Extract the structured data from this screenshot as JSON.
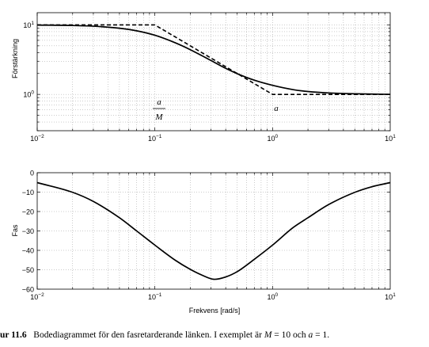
{
  "chart_data": [
    {
      "type": "line",
      "xscale": "log",
      "yscale": "log",
      "xlim": [
        0.01,
        10
      ],
      "ylim": [
        0.3,
        15
      ],
      "grid": true,
      "ylabel": "Förstärkning",
      "xlabel": "",
      "x_ticks": [
        {
          "base": "10",
          "exp": "−2"
        },
        {
          "base": "10",
          "exp": "−1"
        },
        {
          "base": "10",
          "exp": "0"
        },
        {
          "base": "10",
          "exp": "1"
        }
      ],
      "y_ticks": [
        {
          "value": 1,
          "base": "10",
          "exp": "0"
        },
        {
          "value": 10,
          "base": "10",
          "exp": "1"
        }
      ],
      "series": [
        {
          "style": "solid",
          "x": [
            0.01,
            0.02,
            0.03,
            0.05,
            0.07,
            0.1,
            0.15,
            0.2,
            0.3,
            0.4,
            0.5,
            0.7,
            1,
            1.5,
            2,
            3,
            5,
            7,
            10
          ],
          "y": [
            9.95,
            9.81,
            9.58,
            8.96,
            8.23,
            7.1,
            5.5,
            4.4,
            3.07,
            2.37,
            1.99,
            1.6,
            1.35,
            1.17,
            1.1,
            1.05,
            1.02,
            1.01,
            1.0
          ]
        },
        {
          "style": "dashed",
          "x": [
            0.01,
            0.1,
            1,
            10
          ],
          "y": [
            10,
            10,
            1,
            1
          ]
        }
      ],
      "annotations": [
        {
          "x": 0.1,
          "y": 0.5,
          "numerator": "a",
          "denominator": "M"
        },
        {
          "x": 1,
          "y": 0.65,
          "text": "a"
        }
      ]
    },
    {
      "type": "line",
      "xscale": "log",
      "xlim": [
        0.01,
        10
      ],
      "ylim": [
        -60,
        0
      ],
      "grid": true,
      "ylabel": "Fas",
      "xlabel": "Frekvens [rad/s]",
      "x_ticks": [
        {
          "base": "10",
          "exp": "−2"
        },
        {
          "base": "10",
          "exp": "−1"
        },
        {
          "base": "10",
          "exp": "0"
        },
        {
          "base": "10",
          "exp": "1"
        }
      ],
      "y_ticks": [
        {
          "value": 0,
          "label": "0"
        },
        {
          "value": -10,
          "label": "−10"
        },
        {
          "value": -20,
          "label": "−20"
        },
        {
          "value": -30,
          "label": "−30"
        },
        {
          "value": -40,
          "label": "−40"
        },
        {
          "value": -50,
          "label": "−50"
        },
        {
          "value": -60,
          "label": "−60"
        }
      ],
      "series": [
        {
          "style": "solid",
          "x": [
            0.01,
            0.02,
            0.03,
            0.05,
            0.07,
            0.1,
            0.15,
            0.2,
            0.25,
            0.316,
            0.4,
            0.5,
            0.7,
            1,
            1.5,
            2,
            3,
            5,
            7,
            10
          ],
          "y": [
            -5.1,
            -10.1,
            -14.8,
            -23.2,
            -30.0,
            -37.3,
            -45.2,
            -49.8,
            -52.7,
            -54.9,
            -53.7,
            -51.0,
            -44.6,
            -37.3,
            -28.2,
            -23.2,
            -16.4,
            -10.1,
            -7.2,
            -5.1
          ]
        }
      ]
    }
  ],
  "caption": {
    "label": "ur 11.6",
    "text": "Bodediagrammet för den fasretarderande länken. I exemplet är",
    "math_1": "M",
    "eq_1": " = 10 och ",
    "math_2": "a",
    "eq_2": " = 1."
  }
}
